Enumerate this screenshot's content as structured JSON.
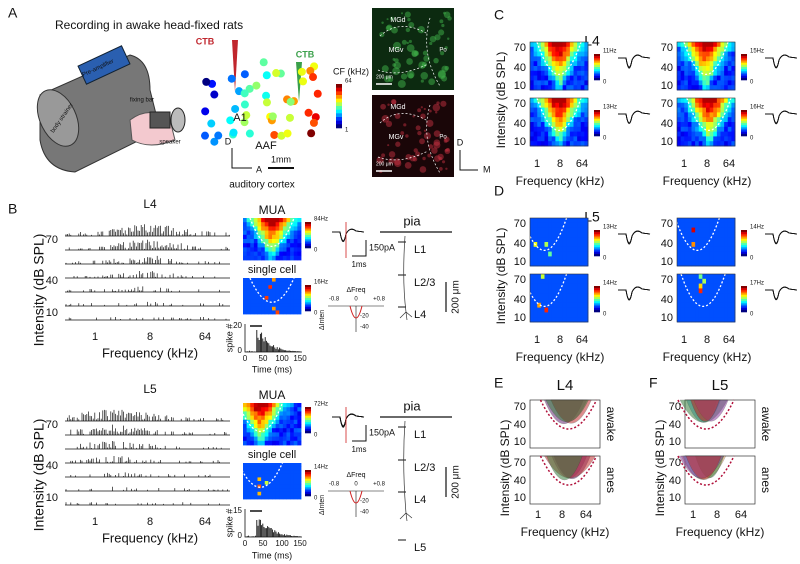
{
  "axes": {
    "intensity_ticks": [
      "70",
      "40",
      "10"
    ],
    "y_label": "Intensity (dB SPL)",
    "freq_ticks": [
      "1",
      "8",
      "64"
    ],
    "x_label": "Frequency (kHz)",
    "zero": "0"
  },
  "panel_a": {
    "label": "A",
    "title": "Recording in awake head-fixed rats",
    "ctb": "CTB",
    "rig_labels": [
      "Pre-amplifier",
      "fixing bar",
      "body strainer",
      "speaker"
    ],
    "fields": [
      "A1",
      "AAF"
    ],
    "axis_d": "D",
    "axis_a": "A",
    "axis_m": "M",
    "scale": "1mm",
    "caption": "auditory cortex",
    "colorbar_title": "CF (kHz)",
    "colorbar_ticks": [
      "64",
      "1"
    ],
    "histology": [
      "MGd",
      "MGv",
      "Po"
    ],
    "histology_scale": "200 μm"
  },
  "panel_b": {
    "label": "B",
    "mua": "MUA",
    "single_cell": "single cell",
    "current_scale": "150pA",
    "time_scale": "1ms",
    "layers": [
      "pia",
      "L1",
      "L2/3",
      "L4",
      "L5"
    ],
    "depth_scale": "200 μm",
    "dfreq": "ΔFreq",
    "dfreq_ticks": [
      "-0.8",
      "0",
      "+0.8"
    ],
    "dinten": "ΔInten",
    "dinten_ticks": [
      "-20",
      "-40"
    ],
    "psth_y": "spike #",
    "psth_x": "Time (ms)",
    "time_ticks": [
      "0",
      "50",
      "100",
      "150"
    ],
    "rows": [
      {
        "layer": "L4",
        "mua_max": "84Hz",
        "cell_max": "16Hz",
        "psth_max": "20"
      },
      {
        "layer": "L5",
        "mua_max": "72Hz",
        "cell_max": "14Hz",
        "psth_max": "15"
      }
    ]
  },
  "panel_c": {
    "label": "C",
    "layer": "L4",
    "rates": [
      "11Hz",
      "15Hz",
      "13Hz",
      "16Hz"
    ]
  },
  "panel_d": {
    "label": "D",
    "layer": "L5",
    "rates": [
      "13Hz",
      "14Hz",
      "14Hz",
      "17Hz"
    ]
  },
  "panel_e": {
    "label": "E",
    "layer": "L4",
    "states": [
      "awake",
      "anes"
    ]
  },
  "panel_f": {
    "label": "F",
    "layer": "L5",
    "states": [
      "awake",
      "anes"
    ]
  }
}
